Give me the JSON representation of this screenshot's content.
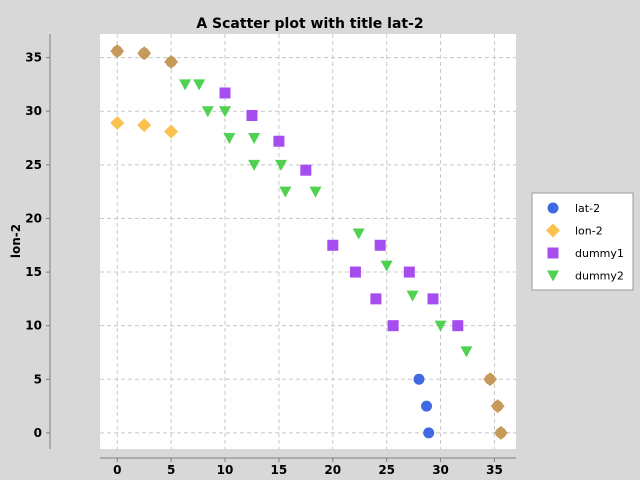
{
  "chart_data": {
    "type": "scatter",
    "title": "A Scatter plot with title lat-2",
    "xlabel": "",
    "ylabel": "lon-2",
    "xlim": [
      -1.6,
      37.0
    ],
    "ylim": [
      -1.5,
      37.2
    ],
    "xticks": [
      0,
      5,
      10,
      15,
      20,
      25,
      30,
      35
    ],
    "yticks": [
      0,
      5,
      10,
      15,
      20,
      25,
      30,
      35
    ],
    "grid": true,
    "legend_position": "right",
    "series": [
      {
        "name": "lat-2",
        "marker": "circle",
        "color": "#4169e1",
        "points": [
          [
            0,
            35.6
          ],
          [
            2.5,
            35.4
          ],
          [
            5,
            34.6
          ],
          [
            28,
            5
          ],
          [
            28.7,
            2.5
          ],
          [
            28.9,
            0
          ],
          [
            34.6,
            5
          ],
          [
            35.3,
            2.5
          ],
          [
            35.6,
            0
          ]
        ]
      },
      {
        "name": "lon-2",
        "marker": "diamond",
        "color": "#fbc14e",
        "points": [
          [
            0,
            35.6
          ],
          [
            2.5,
            35.4
          ],
          [
            5,
            34.6
          ],
          [
            0,
            28.9
          ],
          [
            2.5,
            28.7
          ],
          [
            5,
            28.1
          ],
          [
            34.6,
            5
          ],
          [
            35.3,
            2.5
          ],
          [
            35.6,
            0
          ]
        ]
      },
      {
        "name": "dummy1",
        "marker": "square",
        "color": "#a64df0",
        "points": [
          [
            10,
            31.7
          ],
          [
            12.5,
            29.6
          ],
          [
            15,
            27.2
          ],
          [
            17.5,
            24.5
          ],
          [
            20,
            17.5
          ],
          [
            22.1,
            15
          ],
          [
            24,
            12.5
          ],
          [
            24.4,
            17.5
          ],
          [
            25.6,
            10
          ],
          [
            27.1,
            15
          ],
          [
            29.3,
            12.5
          ],
          [
            31.6,
            10
          ]
        ]
      },
      {
        "name": "dummy2",
        "marker": "triangle-down",
        "color": "#50d250",
        "points": [
          [
            6.3,
            32.5
          ],
          [
            7.6,
            32.5
          ],
          [
            8.4,
            30
          ],
          [
            10,
            30
          ],
          [
            10.4,
            27.5
          ],
          [
            12.7,
            27.5
          ],
          [
            12.7,
            25
          ],
          [
            15.2,
            25
          ],
          [
            15.6,
            22.5
          ],
          [
            18.4,
            22.5
          ],
          [
            22.4,
            18.6
          ],
          [
            25,
            15.6
          ],
          [
            27.4,
            12.8
          ],
          [
            30,
            10
          ],
          [
            32.4,
            7.6
          ]
        ]
      }
    ],
    "overlap_color": "#c69a5a"
  }
}
